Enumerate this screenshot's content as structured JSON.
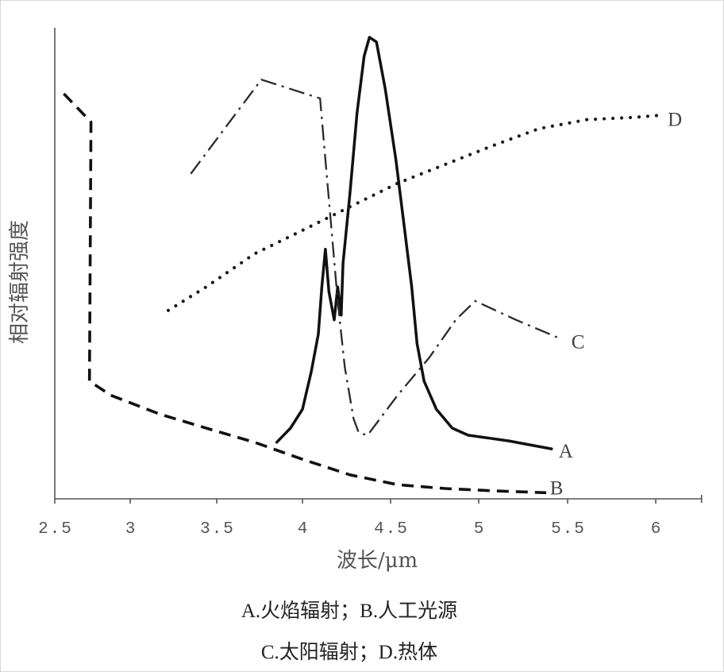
{
  "chart_data": {
    "type": "line",
    "xlabel": "波长/μm",
    "ylabel": "相对辐射强度",
    "xtick_labels": [
      "2.5",
      "3",
      "3.5",
      "4",
      "4.5",
      "5",
      "5.5",
      "6"
    ],
    "xlim": [
      2.5,
      6.26
    ],
    "ylim": [
      0,
      100
    ],
    "grid": false,
    "series": [
      {
        "name": "A",
        "line_style": "solid",
        "x": [
          3.85,
          3.93,
          4.0,
          4.05,
          4.09,
          4.11,
          4.13,
          4.15,
          4.18,
          4.2,
          4.22,
          4.23,
          4.27,
          4.31,
          4.35,
          4.38,
          4.42,
          4.47,
          4.53,
          4.58,
          4.62,
          4.65,
          4.69,
          4.76,
          4.85,
          4.94,
          5.17,
          5.41
        ],
        "y": [
          12,
          15,
          19,
          27,
          35,
          45,
          53,
          44,
          38,
          45,
          39,
          50,
          65,
          82,
          94,
          98,
          97,
          87,
          72,
          57,
          45,
          33,
          25,
          19,
          15,
          13.5,
          12.3,
          10.6
        ]
      },
      {
        "name": "B",
        "line_style": "dashed",
        "x": [
          2.56,
          2.74,
          2.73,
          2.87,
          3.17,
          3.44,
          3.72,
          4.0,
          4.27,
          4.54,
          4.81,
          5.08,
          5.38
        ],
        "y": [
          86,
          80,
          25,
          22,
          18,
          15,
          12,
          8.4,
          5.1,
          3,
          2.2,
          1.7,
          1.3
        ]
      },
      {
        "name": "C",
        "line_style": "dash-dot",
        "x": [
          3.35,
          3.76,
          4.1,
          4.13,
          4.17,
          4.2,
          4.24,
          4.29,
          4.32,
          4.37,
          4.42,
          4.54,
          4.72,
          4.87,
          4.98,
          5.21,
          5.46
        ],
        "y": [
          69,
          89,
          85,
          72,
          55,
          42,
          28,
          17,
          14,
          13.5,
          16,
          22,
          30,
          38,
          42,
          38,
          34
        ]
      },
      {
        "name": "D",
        "line_style": "dotted",
        "x": [
          3.22,
          3.44,
          3.72,
          4.0,
          4.27,
          4.54,
          4.81,
          5.08,
          5.34,
          5.61,
          5.88,
          6.05
        ],
        "y": [
          40,
          45,
          52,
          57,
          62,
          67,
          71,
          75,
          78.6,
          80.5,
          81,
          81.5
        ]
      }
    ],
    "caption_lines": [
      "A.火焰辐射；B.人工光源",
      "C.太阳辐射；D.热体"
    ]
  }
}
